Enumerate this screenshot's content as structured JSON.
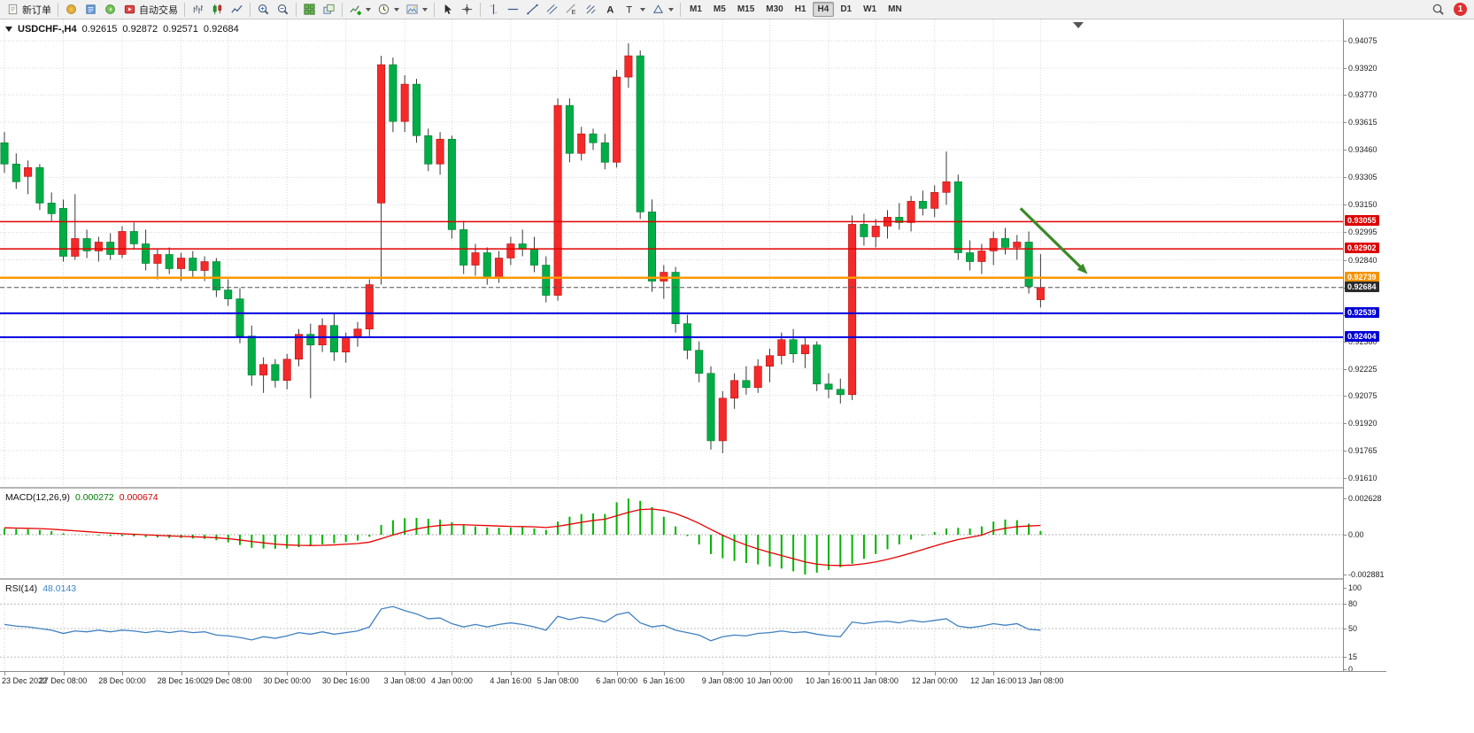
{
  "toolbar": {
    "groups": [
      {
        "items": [
          {
            "name": "new-order",
            "icon": "doc",
            "label": "新订单"
          }
        ]
      },
      {
        "items": [
          {
            "name": "charts",
            "icon": "gold"
          },
          {
            "name": "reports",
            "icon": "report"
          },
          {
            "name": "alerts",
            "icon": "speaker"
          },
          {
            "name": "autotrading",
            "icon": "autotrade",
            "label": "自动交易"
          }
        ]
      },
      {
        "items": [
          {
            "name": "bar-chart-mode",
            "icon": "bars"
          },
          {
            "name": "candlestick-mode",
            "icon": "candles"
          },
          {
            "name": "line-chart-mode",
            "icon": "line"
          }
        ]
      },
      {
        "items": [
          {
            "name": "zoom-in",
            "icon": "zoom-in"
          },
          {
            "name": "zoom-out",
            "icon": "zoom-out"
          }
        ]
      },
      {
        "items": [
          {
            "name": "tile-windows",
            "icon": "tiles"
          },
          {
            "name": "cascade-windows",
            "icon": "cascade"
          }
        ]
      },
      {
        "items": [
          {
            "name": "indicators",
            "icon": "indicator",
            "caret": true
          },
          {
            "name": "periods",
            "icon": "clock",
            "caret": true
          },
          {
            "name": "templates",
            "icon": "template",
            "caret": true
          }
        ]
      },
      {
        "items": [
          {
            "name": "cursor",
            "icon": "cursor"
          },
          {
            "name": "crosshair",
            "icon": "crosshair"
          }
        ]
      },
      {
        "items": [
          {
            "name": "vertical-line-tool",
            "icon": "vline"
          },
          {
            "name": "horizontal-line-tool",
            "icon": "hline"
          },
          {
            "name": "trendline-tool",
            "icon": "trend"
          },
          {
            "name": "channel-tool",
            "icon": "channel"
          },
          {
            "name": "equidistant-channel-tool",
            "icon": "equid"
          },
          {
            "name": "pitchfork-tool",
            "icon": "pitchfork"
          },
          {
            "name": "text-tool",
            "icon": "text"
          },
          {
            "name": "arrows-tool",
            "icon": "arrowt",
            "caret": true
          },
          {
            "name": "shapes-tool",
            "icon": "shapes",
            "caret": true
          }
        ]
      }
    ],
    "timeframes": [
      "M1",
      "M5",
      "M15",
      "M30",
      "H1",
      "H4",
      "D1",
      "W1",
      "MN"
    ],
    "active_timeframe": "H4",
    "notification_count": "1"
  },
  "chart": {
    "symbol_title": "USDCHF-,H4",
    "ohlc": {
      "open": "0.92615",
      "high": "0.92872",
      "low": "0.92571",
      "close": "0.92684"
    },
    "macd_title": "MACD(12,26,9)",
    "macd_value_1": "0.000272",
    "macd_value_2": "0.000674",
    "rsi_title": "RSI(14)",
    "rsi_value": "48.0143",
    "price_axis_labels": [
      "0.94075",
      "0.93920",
      "0.93770",
      "0.93615",
      "0.93460",
      "0.93305",
      "0.93150",
      "0.92995",
      "0.92840",
      "0.92685",
      "0.92530",
      "0.92380",
      "0.92225",
      "0.92075",
      "0.91920",
      "0.91765",
      "0.91610"
    ],
    "price_badges": [
      {
        "value": "0.93055",
        "price": 0.93055,
        "color": "#dd0000"
      },
      {
        "value": "0.92902",
        "price": 0.92902,
        "color": "#dd0000"
      },
      {
        "value": "0.92739",
        "price": 0.92739,
        "color": "#f59300"
      },
      {
        "value": "0.92684",
        "price": 0.92684,
        "color": "#2b2b2b"
      },
      {
        "value": "0.92539",
        "price": 0.92539,
        "color": "#0000d6"
      },
      {
        "value": "0.92404",
        "price": 0.92404,
        "color": "#0000d6"
      }
    ],
    "macd_axis_labels": [
      {
        "value": "0.002628",
        "v": 0.002628
      },
      {
        "value": "0.00",
        "v": 0
      },
      {
        "value": "-0.002881",
        "v": -0.002881
      }
    ],
    "rsi_axis_labels": [
      {
        "value": "100",
        "v": 100
      },
      {
        "value": "80",
        "v": 80
      },
      {
        "value": "50",
        "v": 50
      },
      {
        "value": "15",
        "v": 15
      },
      {
        "value": "0",
        "v": 0
      }
    ],
    "time_labels": [
      {
        "text": "23 Dec 2022",
        "bar": 0
      },
      {
        "text": "27 Dec 08:00",
        "bar": 5
      },
      {
        "text": "28 Dec 00:00",
        "bar": 10
      },
      {
        "text": "28 Dec 16:00",
        "bar": 15
      },
      {
        "text": "29 Dec 08:00",
        "bar": 19
      },
      {
        "text": "30 Dec 00:00",
        "bar": 24
      },
      {
        "text": "30 Dec 16:00",
        "bar": 29
      },
      {
        "text": "3 Jan 08:00",
        "bar": 34
      },
      {
        "text": "4 Jan 00:00",
        "bar": 38
      },
      {
        "text": "4 Jan 16:00",
        "bar": 43
      },
      {
        "text": "5 Jan 08:00",
        "bar": 47
      },
      {
        "text": "6 Jan 00:00",
        "bar": 52
      },
      {
        "text": "6 Jan 16:00",
        "bar": 56
      },
      {
        "text": "9 Jan 08:00",
        "bar": 61
      },
      {
        "text": "10 Jan 00:00",
        "bar": 65
      },
      {
        "text": "10 Jan 16:00",
        "bar": 70
      },
      {
        "text": "11 Jan 08:00",
        "bar": 74
      },
      {
        "text": "12 Jan 00:00",
        "bar": 79
      },
      {
        "text": "12 Jan 16:00",
        "bar": 84
      },
      {
        "text": "13 Jan 08:00",
        "bar": 88
      }
    ]
  },
  "chart_data": {
    "type": "candlestick",
    "symbol": "USDCHF",
    "timeframe": "H4",
    "price_range": [
      0.9161,
      0.94075
    ],
    "ohlc": [
      [
        0.935,
        0.9356,
        0.9333,
        0.9338
      ],
      [
        0.9338,
        0.9344,
        0.9324,
        0.9328
      ],
      [
        0.9331,
        0.934,
        0.9321,
        0.9336
      ],
      [
        0.9336,
        0.9338,
        0.9312,
        0.9316
      ],
      [
        0.9316,
        0.9322,
        0.9306,
        0.931
      ],
      [
        0.9313,
        0.9318,
        0.9283,
        0.9286
      ],
      [
        0.9286,
        0.9321,
        0.9284,
        0.9296
      ],
      [
        0.9296,
        0.9301,
        0.9285,
        0.9289
      ],
      [
        0.9289,
        0.9297,
        0.9283,
        0.9294
      ],
      [
        0.9294,
        0.9299,
        0.9284,
        0.9287
      ],
      [
        0.9287,
        0.9303,
        0.9285,
        0.93
      ],
      [
        0.93,
        0.9305,
        0.929,
        0.9293
      ],
      [
        0.9293,
        0.9301,
        0.9278,
        0.9282
      ],
      [
        0.9282,
        0.929,
        0.9273,
        0.9287
      ],
      [
        0.9287,
        0.9291,
        0.9276,
        0.9279
      ],
      [
        0.9279,
        0.9288,
        0.9272,
        0.9285
      ],
      [
        0.9285,
        0.9289,
        0.9274,
        0.9278
      ],
      [
        0.9278,
        0.9286,
        0.9272,
        0.9283
      ],
      [
        0.9283,
        0.9285,
        0.9263,
        0.9267
      ],
      [
        0.9267,
        0.9273,
        0.9258,
        0.9262
      ],
      [
        0.9262,
        0.9268,
        0.9237,
        0.9241
      ],
      [
        0.9241,
        0.9247,
        0.9213,
        0.9219
      ],
      [
        0.9219,
        0.9229,
        0.9209,
        0.9225
      ],
      [
        0.9225,
        0.9228,
        0.9212,
        0.9216
      ],
      [
        0.9216,
        0.9231,
        0.9211,
        0.9228
      ],
      [
        0.9228,
        0.9245,
        0.9224,
        0.9242
      ],
      [
        0.9242,
        0.9248,
        0.9206,
        0.9236
      ],
      [
        0.9236,
        0.9251,
        0.9232,
        0.9247
      ],
      [
        0.9247,
        0.9254,
        0.9227,
        0.9232
      ],
      [
        0.9232,
        0.9243,
        0.9226,
        0.924
      ],
      [
        0.924,
        0.9249,
        0.9235,
        0.9245
      ],
      [
        0.9245,
        0.9273,
        0.9241,
        0.927
      ],
      [
        0.9316,
        0.9399,
        0.927,
        0.9394
      ],
      [
        0.9394,
        0.9398,
        0.9356,
        0.9362
      ],
      [
        0.9362,
        0.9388,
        0.9356,
        0.9383
      ],
      [
        0.9383,
        0.9386,
        0.935,
        0.9354
      ],
      [
        0.9354,
        0.9358,
        0.9334,
        0.9338
      ],
      [
        0.9338,
        0.9356,
        0.9332,
        0.9352
      ],
      [
        0.9352,
        0.9354,
        0.9296,
        0.9301
      ],
      [
        0.9301,
        0.9306,
        0.9276,
        0.9281
      ],
      [
        0.9281,
        0.9293,
        0.9275,
        0.9288
      ],
      [
        0.9288,
        0.9291,
        0.927,
        0.9274
      ],
      [
        0.9274,
        0.9289,
        0.9271,
        0.9285
      ],
      [
        0.9285,
        0.9297,
        0.9281,
        0.9293
      ],
      [
        0.9293,
        0.9301,
        0.9286,
        0.929
      ],
      [
        0.929,
        0.9297,
        0.9277,
        0.9281
      ],
      [
        0.9281,
        0.9286,
        0.926,
        0.9264
      ],
      [
        0.9264,
        0.9375,
        0.9261,
        0.9371
      ],
      [
        0.9371,
        0.9375,
        0.9339,
        0.9344
      ],
      [
        0.9344,
        0.9359,
        0.934,
        0.9355
      ],
      [
        0.9355,
        0.9358,
        0.9346,
        0.935
      ],
      [
        0.935,
        0.9355,
        0.9335,
        0.9339
      ],
      [
        0.9339,
        0.9391,
        0.9336,
        0.9387
      ],
      [
        0.9387,
        0.9406,
        0.9381,
        0.9399
      ],
      [
        0.9399,
        0.9402,
        0.9307,
        0.9311
      ],
      [
        0.9311,
        0.9318,
        0.9266,
        0.9272
      ],
      [
        0.9272,
        0.9281,
        0.9262,
        0.9277
      ],
      [
        0.9277,
        0.928,
        0.9243,
        0.9248
      ],
      [
        0.9248,
        0.9253,
        0.9228,
        0.9233
      ],
      [
        0.9233,
        0.9238,
        0.9215,
        0.922
      ],
      [
        0.922,
        0.9224,
        0.9177,
        0.9182
      ],
      [
        0.9182,
        0.921,
        0.9175,
        0.9206
      ],
      [
        0.9206,
        0.922,
        0.92,
        0.9216
      ],
      [
        0.9216,
        0.9224,
        0.9208,
        0.9212
      ],
      [
        0.9212,
        0.9228,
        0.9209,
        0.9224
      ],
      [
        0.9224,
        0.9234,
        0.9215,
        0.923
      ],
      [
        0.923,
        0.9243,
        0.9225,
        0.9239
      ],
      [
        0.9239,
        0.9245,
        0.9226,
        0.9231
      ],
      [
        0.9231,
        0.924,
        0.9223,
        0.9236
      ],
      [
        0.9236,
        0.9238,
        0.921,
        0.9214
      ],
      [
        0.9214,
        0.922,
        0.9206,
        0.9211
      ],
      [
        0.9211,
        0.9217,
        0.9203,
        0.9208
      ],
      [
        0.9208,
        0.9309,
        0.9205,
        0.9304
      ],
      [
        0.9304,
        0.931,
        0.9292,
        0.9297
      ],
      [
        0.9297,
        0.9307,
        0.9291,
        0.9303
      ],
      [
        0.9303,
        0.9312,
        0.9296,
        0.9308
      ],
      [
        0.9308,
        0.9316,
        0.9301,
        0.9305
      ],
      [
        0.9305,
        0.932,
        0.93,
        0.9317
      ],
      [
        0.9317,
        0.9323,
        0.9309,
        0.9313
      ],
      [
        0.9313,
        0.9326,
        0.9308,
        0.9322
      ],
      [
        0.9322,
        0.9345,
        0.9315,
        0.9328
      ],
      [
        0.9328,
        0.9332,
        0.9284,
        0.9288
      ],
      [
        0.9288,
        0.9295,
        0.9278,
        0.9283
      ],
      [
        0.9283,
        0.9293,
        0.9276,
        0.9289
      ],
      [
        0.9289,
        0.93,
        0.9281,
        0.9296
      ],
      [
        0.9296,
        0.9302,
        0.9287,
        0.9291
      ],
      [
        0.9291,
        0.9298,
        0.9284,
        0.9294
      ],
      [
        0.9294,
        0.93,
        0.9265,
        0.9269
      ],
      [
        0.92615,
        0.92872,
        0.92571,
        0.92684
      ]
    ],
    "hlines": [
      {
        "price": 0.93055,
        "color": "#e10000",
        "width": 1.5,
        "style": "solid"
      },
      {
        "price": 0.92902,
        "color": "#e10000",
        "width": 1.5,
        "style": "solid"
      },
      {
        "price": 0.92739,
        "color": "#ff9800",
        "width": 2.5,
        "style": "solid"
      },
      {
        "price": 0.92684,
        "color": "#555555",
        "width": 1,
        "style": "dash"
      },
      {
        "price": 0.92539,
        "color": "#0000e1",
        "width": 2,
        "style": "solid"
      },
      {
        "price": 0.92404,
        "color": "#0000e1",
        "width": 2,
        "style": "solid"
      }
    ],
    "annotation_arrow": {
      "x1_bar": 86.3,
      "y1_price": 0.9313,
      "x2_bar": 92,
      "y2_price": 0.9276,
      "color": "#3a8a28"
    },
    "indicators": {
      "macd": {
        "histogram": [
          0.00045,
          0.00042,
          0.0004,
          0.00034,
          0.00026,
          0.0001,
          2e-05,
          -3e-05,
          -6e-05,
          -0.0001,
          -0.0001,
          -0.00012,
          -0.00018,
          -0.0002,
          -0.00024,
          -0.00025,
          -0.00028,
          -0.0003,
          -0.0004,
          -0.00055,
          -0.00075,
          -0.00095,
          -0.001,
          -0.00102,
          -0.001,
          -0.0009,
          -0.00082,
          -0.0007,
          -0.00062,
          -0.00052,
          -0.00042,
          -0.00015,
          0.0007,
          0.00105,
          0.0012,
          0.00122,
          0.00115,
          0.0011,
          0.0009,
          0.0007,
          0.0006,
          0.00052,
          0.0005,
          0.00052,
          0.00055,
          0.00045,
          0.00035,
          0.00095,
          0.0013,
          0.0015,
          0.00155,
          0.0015,
          0.00235,
          0.00262,
          0.00245,
          0.002,
          0.0013,
          0.0006,
          -0.0001,
          -0.0007,
          -0.0014,
          -0.0017,
          -0.0019,
          -0.00205,
          -0.00215,
          -0.0023,
          -0.00245,
          -0.00265,
          -0.00288,
          -0.00275,
          -0.00255,
          -0.00235,
          -0.0021,
          -0.00175,
          -0.0014,
          -0.00105,
          -0.0007,
          -0.00035,
          -5e-05,
          0.0002,
          0.00045,
          0.0005,
          0.00045,
          0.0006,
          0.00095,
          0.0011,
          0.00105,
          0.0008,
          0.000272
        ],
        "signal": [
          0.0005,
          0.00048,
          0.00046,
          0.00044,
          0.0004,
          0.00034,
          0.00028,
          0.00022,
          0.00016,
          0.00011,
          7e-05,
          3e-05,
          -1e-05,
          -5e-05,
          -9e-05,
          -0.00012,
          -0.00015,
          -0.00018,
          -0.00022,
          -0.00029,
          -0.00038,
          -0.00049,
          -0.00059,
          -0.00068,
          -0.00074,
          -0.00077,
          -0.00078,
          -0.00077,
          -0.00074,
          -0.00069,
          -0.00064,
          -0.00054,
          -0.00029,
          -2e-05,
          0.00022,
          0.00042,
          0.00057,
          0.00067,
          0.00072,
          0.00072,
          0.00069,
          0.00066,
          0.00063,
          0.0006,
          0.00059,
          0.00057,
          0.00052,
          0.00061,
          0.00075,
          0.0009,
          0.00103,
          0.00112,
          0.00137,
          0.00162,
          0.00182,
          0.00186,
          0.00176,
          0.00153,
          0.0012,
          0.00082,
          0.00038,
          -4e-05,
          -0.00042,
          -0.00075,
          -0.00103,
          -0.00128,
          -0.00151,
          -0.00174,
          -0.00197,
          -0.00213,
          -0.00221,
          -0.00223,
          -0.0022,
          -0.00211,
          -0.00197,
          -0.00179,
          -0.00157,
          -0.00133,
          -0.00107,
          -0.00082,
          -0.00057,
          -0.00035,
          -0.00019,
          -3e-05,
          0.0003,
          0.00046,
          0.00058,
          0.00063,
          0.000674
        ],
        "range": [
          -0.002881,
          0.002628
        ]
      },
      "rsi": {
        "values": [
          55,
          53,
          52,
          50,
          48,
          44,
          47,
          46,
          48,
          46,
          48,
          47,
          45,
          47,
          45,
          47,
          45,
          46,
          42,
          41,
          39,
          36,
          40,
          38,
          41,
          45,
          43,
          46,
          43,
          45,
          47,
          52,
          74,
          77,
          72,
          68,
          62,
          63,
          56,
          52,
          55,
          52,
          55,
          57,
          55,
          52,
          48,
          65,
          61,
          64,
          62,
          58,
          67,
          70,
          57,
          52,
          54,
          48,
          45,
          42,
          35,
          40,
          42,
          41,
          44,
          45,
          47,
          45,
          46,
          43,
          41,
          40,
          58,
          56,
          58,
          59,
          57,
          60,
          58,
          60,
          62,
          53,
          51,
          53,
          56,
          54,
          56,
          49,
          48.0143
        ],
        "levels": [
          80,
          50,
          15
        ],
        "range": [
          0,
          100
        ]
      }
    },
    "colors": {
      "bull": "#f42a2a",
      "bull_border": "#b80f0f",
      "bear": "#00ad46",
      "bear_border": "#007a2e",
      "wick": "#3a3a3a",
      "grid": "#d7d7d7",
      "macd_histogram": "#00b400",
      "macd_signal": "#e60000",
      "rsi_line": "#4080c0",
      "background": "#ffffff"
    }
  }
}
